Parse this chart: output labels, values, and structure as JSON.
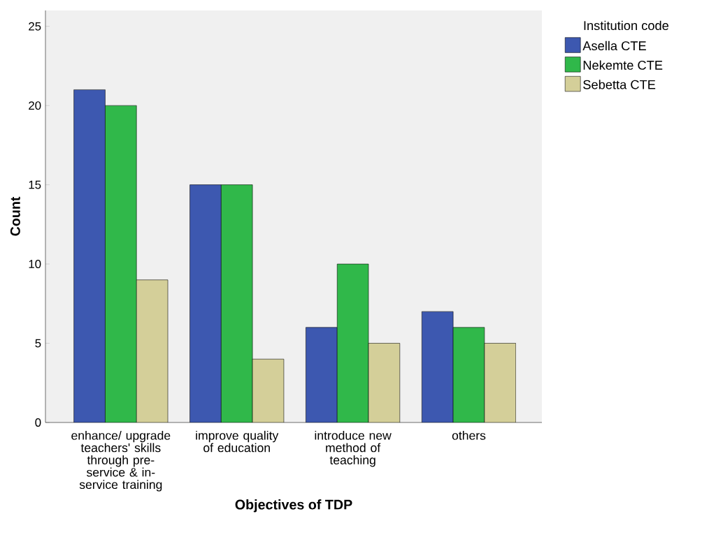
{
  "chart_data": {
    "type": "bar",
    "xlabel": "Objectives of TDP",
    "ylabel": "Count",
    "legend_title": "Institution code",
    "categories": [
      "enhance/ upgrade teachers' skills through pre-service & in-service training",
      "improve quality of education",
      "introduce new method of teaching",
      "others"
    ],
    "series": [
      {
        "name": "Asella CTE",
        "color": "#3d58b0",
        "values": [
          21,
          15,
          6,
          7
        ]
      },
      {
        "name": "Nekemte CTE",
        "color": "#30b84a",
        "values": [
          20,
          15,
          10,
          6
        ]
      },
      {
        "name": "Sebetta CTE",
        "color": "#d4cf99",
        "values": [
          9,
          4,
          5,
          5
        ]
      }
    ],
    "ylim": [
      0,
      26
    ],
    "yticks": [
      0,
      5,
      10,
      15,
      20,
      25
    ],
    "legend": "top right"
  }
}
